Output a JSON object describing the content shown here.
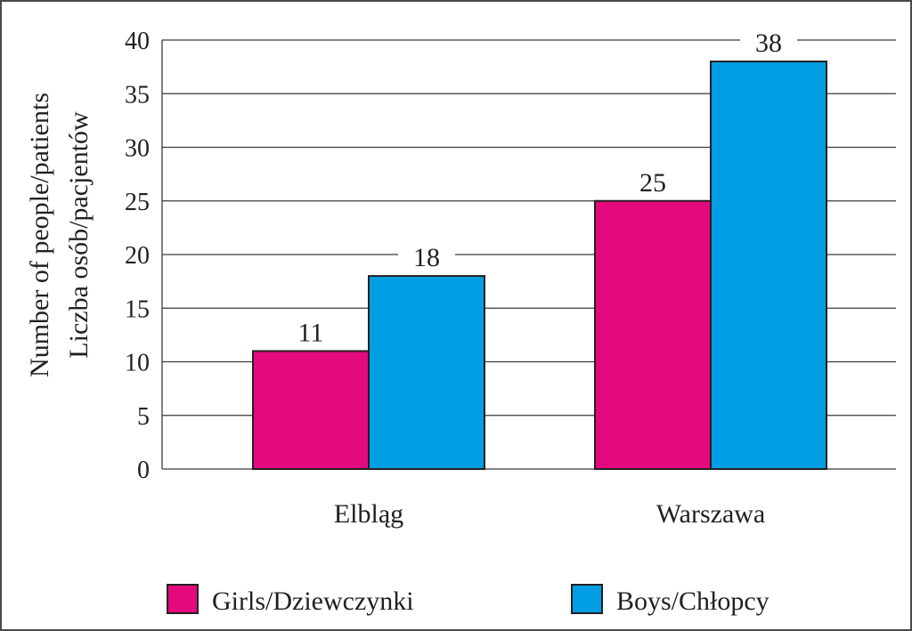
{
  "chart_data": {
    "type": "bar",
    "categories": [
      "Elbląg",
      "Warszawa"
    ],
    "series": [
      {
        "name": "Girls/Dziewczynki",
        "values": [
          11,
          25
        ],
        "color": "#e5097f"
      },
      {
        "name": "Boys/Chłopcy",
        "values": [
          18,
          38
        ],
        "color": "#009fe3"
      }
    ],
    "ylabel_lines": [
      "Number of people/patients",
      "Liczba osób/pacjentów"
    ],
    "ylim": [
      0,
      40
    ],
    "yticks": [
      0,
      5,
      10,
      15,
      20,
      25,
      30,
      35,
      40
    ],
    "grid": true,
    "legend_position": "bottom"
  }
}
